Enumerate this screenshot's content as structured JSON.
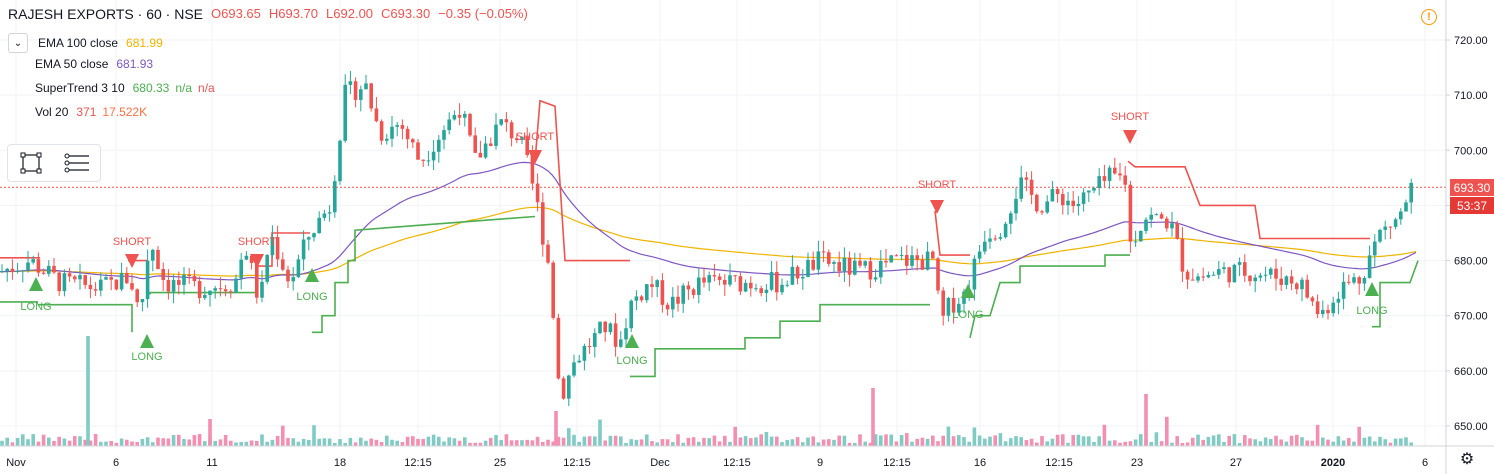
{
  "header": {
    "symbol": "RAJESH EXPORTS · 60 · NSE",
    "open": "O693.65",
    "high": "H693.70",
    "low": "L692.00",
    "close": "C693.30",
    "change": "−0.35 (−0.05%)"
  },
  "indicators": [
    {
      "label": "EMA 100 close",
      "value": "681.99",
      "color": "#f0b400"
    },
    {
      "label": "EMA 50 close",
      "value": "681.93",
      "color": "#7e57c2"
    },
    {
      "label": "SuperTrend 3 10",
      "value": "680.33",
      "extra": "n/a",
      "extra2": "n/a",
      "color": "#4caf50",
      "extra_color": "#4caf50",
      "extra2_color": "#ef5350"
    },
    {
      "label": "Vol 20",
      "value": "371",
      "extra": "17.522K",
      "color": "#ef5350",
      "extra_color": "#ff7043"
    }
  ],
  "price_tags": {
    "last": "693.30",
    "countdown": "53:37"
  },
  "chart_data": {
    "type": "candlestick",
    "y_axis": {
      "ticks": [
        "720.00",
        "710.00",
        "700.00",
        "690.00",
        "680.00",
        "670.00",
        "660.00",
        "650.00"
      ],
      "ylim": [
        647,
        727
      ]
    },
    "x_axis": {
      "ticks": [
        "Nov",
        "6",
        "11",
        "18",
        "12:15",
        "25",
        "12:15",
        "Dec",
        "12:15",
        "9",
        "12:15",
        "16",
        "12:15",
        "23",
        "27",
        "2020",
        "6"
      ]
    },
    "last_price": 693.3,
    "signals": [
      {
        "label": "LONG",
        "type": "long"
      },
      {
        "label": "SHORT",
        "type": "short"
      },
      {
        "label": "LONG",
        "type": "long"
      },
      {
        "label": "SHORT",
        "type": "short"
      },
      {
        "label": "LONG",
        "type": "long"
      },
      {
        "label": "SHORT",
        "type": "short"
      },
      {
        "label": "LONG",
        "type": "long"
      },
      {
        "label": "SHORT",
        "type": "short"
      },
      {
        "label": "LONG",
        "type": "long"
      },
      {
        "label": "SHORT",
        "type": "short"
      },
      {
        "label": "LONG",
        "type": "long"
      }
    ],
    "colors": {
      "up": "#26a69a",
      "down": "#ef5350",
      "ema100": "#f0b400",
      "ema50": "#7e57c2",
      "st_long": "#4caf50",
      "st_short": "#ef5350",
      "vol_up": "#80cbc4",
      "vol_down": "#f48fb1",
      "last_line": "#ef5350"
    }
  },
  "icons": {
    "warning": "warning-icon",
    "settings": "gear-icon",
    "rectangle_tool": "rectangle-tool-icon",
    "menu_tool": "lines-tool-icon",
    "collapse": "chevron-down-icon"
  }
}
